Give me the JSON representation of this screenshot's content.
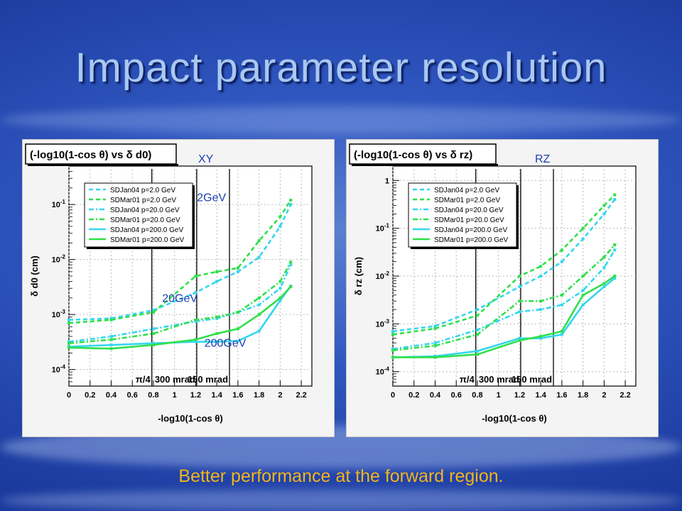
{
  "slide": {
    "title": "Impact parameter resolution",
    "caption": "Better performance at the forward region."
  },
  "colors": {
    "cyan": "#34d6ef",
    "green": "#2fe04a",
    "label": "#1d3fb0"
  },
  "legend_entries": [
    {
      "name": "SDJan04 p=2.0 GeV",
      "color": "#34d6ef",
      "dash": "dashed"
    },
    {
      "name": "SDMar01 p=2.0 GeV",
      "color": "#2fe04a",
      "dash": "dashed"
    },
    {
      "name": "SDJan04 p=20.0 GeV",
      "color": "#34d6ef",
      "dash": "dashdot"
    },
    {
      "name": "SDMar01 p=20.0 GeV",
      "color": "#2fe04a",
      "dash": "dashdot"
    },
    {
      "name": "SDJan04 p=200.0 GeV",
      "color": "#34d6ef",
      "dash": "solid"
    },
    {
      "name": "SDMar01 p=200.0 GeV",
      "color": "#2fe04a",
      "dash": "solid"
    }
  ],
  "chart_data": [
    {
      "type": "line",
      "title": "(-log10(1-cos θ) vs δ d0)",
      "label": "XY",
      "xlabel": "-log10(1-cos θ)",
      "ylabel": "δ d0 (cm)",
      "xlim": [
        0,
        2.3
      ],
      "ylim": [
        5e-05,
        0.5
      ],
      "log_y": true,
      "grid": true,
      "legend": "top-left",
      "xticks": [
        "0",
        "0.2",
        "0.4",
        "0.6",
        "0.8",
        "1",
        "1.2",
        "1.4",
        "1.6",
        "1.8",
        "2",
        "2.2"
      ],
      "yticks": [
        {
          "v": 0.0001,
          "label": "10^-4"
        },
        {
          "v": 0.001,
          "label": "10^-3"
        },
        {
          "v": 0.01,
          "label": "10^-2"
        },
        {
          "v": 0.1,
          "label": "10^-1"
        }
      ],
      "marker_lines": [
        {
          "x": 0.785,
          "label": "π/4"
        },
        {
          "x": 1.21,
          "label": "300 mrad"
        },
        {
          "x": 1.52,
          "label": "150 mrad"
        }
      ],
      "annotations": [
        {
          "text": "2GeV",
          "x": 1.35,
          "y": 0.115
        },
        {
          "text": "20GeV",
          "x": 1.05,
          "y": 0.0017
        },
        {
          "text": "200GeV",
          "x": 1.48,
          "y": 0.00026
        }
      ],
      "x": [
        0,
        0.4,
        0.8,
        1.2,
        1.4,
        1.6,
        1.8,
        2.0,
        2.1
      ],
      "series": [
        {
          "name": "SDJan04 p=2.0 GeV",
          "values": [
            0.0008,
            0.00085,
            0.0012,
            0.0025,
            0.004,
            0.006,
            0.011,
            0.04,
            0.1
          ]
        },
        {
          "name": "SDMar01 p=2.0 GeV",
          "values": [
            0.0007,
            0.0008,
            0.0011,
            0.005,
            0.006,
            0.007,
            0.022,
            0.06,
            0.12
          ]
        },
        {
          "name": "SDJan04 p=20.0 GeV",
          "values": [
            0.00032,
            0.0004,
            0.00055,
            0.00075,
            0.00085,
            0.0011,
            0.0015,
            0.003,
            0.008
          ]
        },
        {
          "name": "SDMar01 p=20.0 GeV",
          "values": [
            0.0003,
            0.00035,
            0.00045,
            0.0008,
            0.0009,
            0.0011,
            0.002,
            0.004,
            0.009
          ]
        },
        {
          "name": "SDJan04 p=200.0 GeV",
          "values": [
            0.00026,
            0.00028,
            0.0003,
            0.00032,
            0.00032,
            0.00033,
            0.0005,
            0.0018,
            0.0033
          ]
        },
        {
          "name": "SDMar01 p=200.0 GeV",
          "values": [
            0.00025,
            0.00024,
            0.00028,
            0.00035,
            0.00045,
            0.00055,
            0.001,
            0.002,
            0.0032
          ]
        }
      ]
    },
    {
      "type": "line",
      "title": "(-log10(1-cos θ) vs δ rz)",
      "label": "RZ",
      "xlabel": "-log10(1-cos θ)",
      "ylabel": "δ rz (cm)",
      "xlim": [
        0,
        2.3
      ],
      "ylim": [
        5e-05,
        2
      ],
      "log_y": true,
      "grid": true,
      "legend": "top-left",
      "xticks": [
        "0",
        "0.2",
        "0.4",
        "0.6",
        "0.8",
        "1",
        "1.2",
        "1.4",
        "1.6",
        "1.8",
        "2",
        "2.2"
      ],
      "yticks": [
        {
          "v": 0.0001,
          "label": "10^-4"
        },
        {
          "v": 0.001,
          "label": "10^-3"
        },
        {
          "v": 0.01,
          "label": "10^-2"
        },
        {
          "v": 0.1,
          "label": "10^-1"
        },
        {
          "v": 1,
          "label": "1"
        }
      ],
      "marker_lines": [
        {
          "x": 0.785,
          "label": "π/4"
        },
        {
          "x": 1.21,
          "label": "300 mrad"
        },
        {
          "x": 1.52,
          "label": "150 mrad"
        }
      ],
      "annotations": [],
      "x": [
        0,
        0.4,
        0.8,
        1.2,
        1.4,
        1.6,
        1.8,
        2.0,
        2.1
      ],
      "series": [
        {
          "name": "SDJan04 p=2.0 GeV",
          "values": [
            0.0007,
            0.0009,
            0.002,
            0.006,
            0.01,
            0.02,
            0.06,
            0.2,
            0.4
          ]
        },
        {
          "name": "SDMar01 p=2.0 GeV",
          "values": [
            0.0006,
            0.0008,
            0.0015,
            0.01,
            0.016,
            0.035,
            0.1,
            0.3,
            0.5
          ]
        },
        {
          "name": "SDJan04 p=20.0 GeV",
          "values": [
            0.0003,
            0.0004,
            0.00075,
            0.0018,
            0.002,
            0.0025,
            0.005,
            0.015,
            0.035
          ]
        },
        {
          "name": "SDMar01 p=20.0 GeV",
          "values": [
            0.00028,
            0.00035,
            0.0006,
            0.003,
            0.003,
            0.004,
            0.01,
            0.025,
            0.045
          ]
        },
        {
          "name": "SDJan04 p=200.0 GeV",
          "values": [
            0.0002,
            0.00021,
            0.00027,
            0.0005,
            0.0005,
            0.0006,
            0.0025,
            0.006,
            0.009
          ]
        },
        {
          "name": "SDMar01 p=200.0 GeV",
          "values": [
            0.0002,
            0.0002,
            0.00023,
            0.00045,
            0.00055,
            0.0007,
            0.004,
            0.007,
            0.01
          ]
        }
      ]
    }
  ]
}
